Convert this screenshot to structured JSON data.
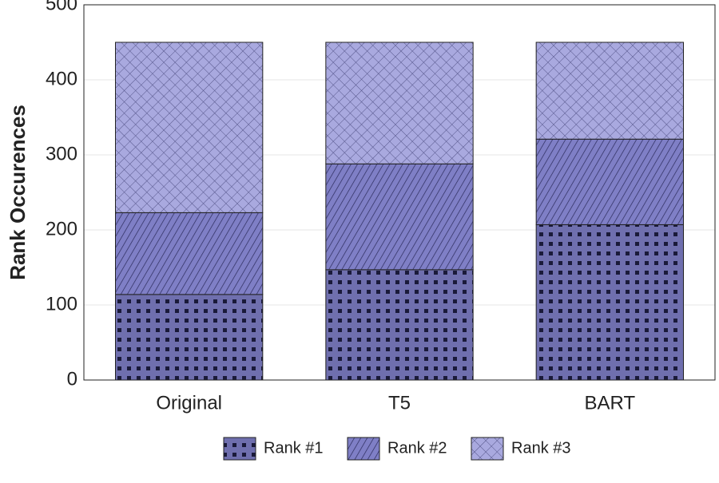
{
  "chart_data": {
    "type": "stacked_bar",
    "y_label": "Rank Occurences",
    "categories": [
      "Original",
      "T5",
      "BART"
    ],
    "series": [
      {
        "name": "Rank #1",
        "color": "#6f6fae",
        "values": [
          114,
          147,
          207
        ]
      },
      {
        "name": "Rank #2",
        "color": "#7f7fc6",
        "values": [
          109,
          141,
          114
        ]
      },
      {
        "name": "Rank #3",
        "color": "#a9a9df",
        "values": [
          227,
          162,
          129
        ]
      }
    ],
    "ylim": [
      0,
      500
    ],
    "yticks": [
      0,
      100,
      200,
      300,
      400,
      500
    ],
    "grid": true
  }
}
